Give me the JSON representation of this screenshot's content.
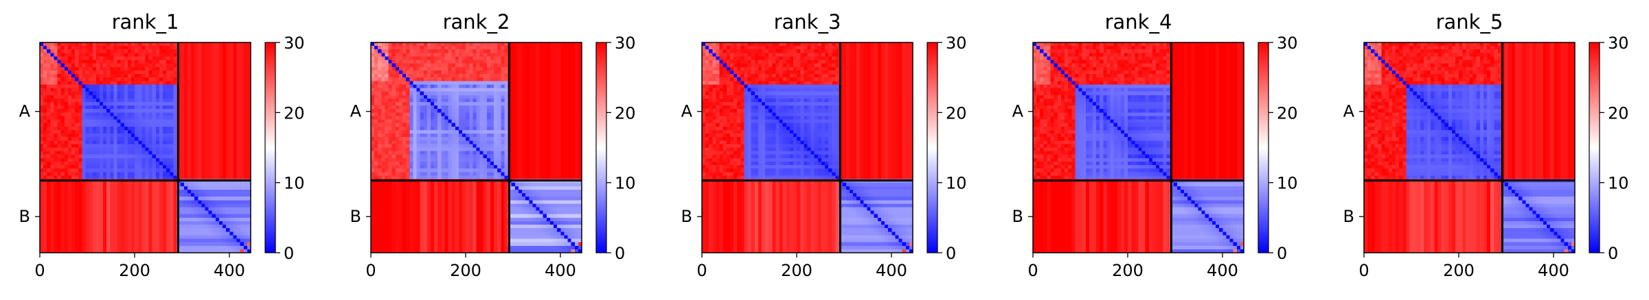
{
  "figure": {
    "panels": [
      "rank_1",
      "rank_2",
      "rank_3",
      "rank_4",
      "rank_5"
    ]
  },
  "chart_data": [
    {
      "type": "heatmap",
      "title": "rank_1",
      "xlabel": "",
      "ylabel": "",
      "xlim": [
        0,
        445
      ],
      "ylim": [
        445,
        0
      ],
      "xticks": [
        0,
        200,
        400
      ],
      "chains": [
        {
          "label": "A",
          "start": 0,
          "end": 292
        },
        {
          "label": "B",
          "start": 292,
          "end": 445
        }
      ],
      "chain_boundary": 292,
      "colorbar": {
        "min": 0,
        "max": 30,
        "ticks": [
          0,
          10,
          20,
          30
        ],
        "colormap": "bwr",
        "low_color": "#0000ff",
        "mid_color": "#ffffff",
        "high_color": "#ff0000"
      },
      "structure": {
        "linker_end": 88,
        "blockA_pae": 3,
        "blockB_pae": 5,
        "nterm_pae": 27,
        "inter_chain_pae": 28,
        "band_variation": 0.5
      },
      "grid": false
    },
    {
      "type": "heatmap",
      "title": "rank_2",
      "xlabel": "",
      "ylabel": "",
      "xlim": [
        0,
        445
      ],
      "ylim": [
        445,
        0
      ],
      "xticks": [
        0,
        200,
        400
      ],
      "chains": [
        {
          "label": "A",
          "start": 0,
          "end": 292
        },
        {
          "label": "B",
          "start": 292,
          "end": 445
        }
      ],
      "chain_boundary": 292,
      "colorbar": {
        "min": 0,
        "max": 30,
        "ticks": [
          0,
          10,
          20,
          30
        ],
        "colormap": "bwr",
        "low_color": "#0000ff",
        "mid_color": "#ffffff",
        "high_color": "#ff0000"
      },
      "structure": {
        "linker_end": 85,
        "blockA_pae": 5,
        "blockB_pae": 5,
        "nterm_pae": 25,
        "inter_chain_pae": 29,
        "band_variation": 0.8
      },
      "grid": false
    },
    {
      "type": "heatmap",
      "title": "rank_3",
      "xlabel": "",
      "ylabel": "",
      "xlim": [
        0,
        445
      ],
      "ylim": [
        445,
        0
      ],
      "xticks": [
        0,
        200,
        400
      ],
      "chains": [
        {
          "label": "A",
          "start": 0,
          "end": 292
        },
        {
          "label": "B",
          "start": 292,
          "end": 445
        }
      ],
      "chain_boundary": 292,
      "colorbar": {
        "min": 0,
        "max": 30,
        "ticks": [
          0,
          10,
          20,
          30
        ],
        "colormap": "bwr",
        "low_color": "#0000ff",
        "mid_color": "#ffffff",
        "high_color": "#ff0000"
      },
      "structure": {
        "linker_end": 88,
        "blockA_pae": 3,
        "blockB_pae": 5,
        "nterm_pae": 27,
        "inter_chain_pae": 28,
        "band_variation": 0.5
      },
      "grid": false
    },
    {
      "type": "heatmap",
      "title": "rank_4",
      "xlabel": "",
      "ylabel": "",
      "xlim": [
        0,
        445
      ],
      "ylim": [
        445,
        0
      ],
      "xticks": [
        0,
        200,
        400
      ],
      "chains": [
        {
          "label": "A",
          "start": 0,
          "end": 292
        },
        {
          "label": "B",
          "start": 292,
          "end": 445
        }
      ],
      "chain_boundary": 292,
      "colorbar": {
        "min": 0,
        "max": 30,
        "ticks": [
          0,
          10,
          20,
          30
        ],
        "colormap": "bwr",
        "low_color": "#0000ff",
        "mid_color": "#ffffff",
        "high_color": "#ff0000"
      },
      "structure": {
        "linker_end": 88,
        "blockA_pae": 3,
        "blockB_pae": 5,
        "nterm_pae": 27,
        "inter_chain_pae": 29,
        "band_variation": 0.6
      },
      "grid": false
    },
    {
      "type": "heatmap",
      "title": "rank_5",
      "xlabel": "",
      "ylabel": "",
      "xlim": [
        0,
        445
      ],
      "ylim": [
        445,
        0
      ],
      "xticks": [
        0,
        200,
        400
      ],
      "chains": [
        {
          "label": "A",
          "start": 0,
          "end": 292
        },
        {
          "label": "B",
          "start": 292,
          "end": 445
        }
      ],
      "chain_boundary": 292,
      "colorbar": {
        "min": 0,
        "max": 30,
        "ticks": [
          0,
          10,
          20,
          30
        ],
        "colormap": "bwr",
        "low_color": "#0000ff",
        "mid_color": "#ffffff",
        "high_color": "#ff0000"
      },
      "structure": {
        "linker_end": 88,
        "blockA_pae": 3,
        "blockB_pae": 5,
        "nterm_pae": 27,
        "inter_chain_pae": 28,
        "band_variation": 0.5
      },
      "grid": false
    }
  ]
}
